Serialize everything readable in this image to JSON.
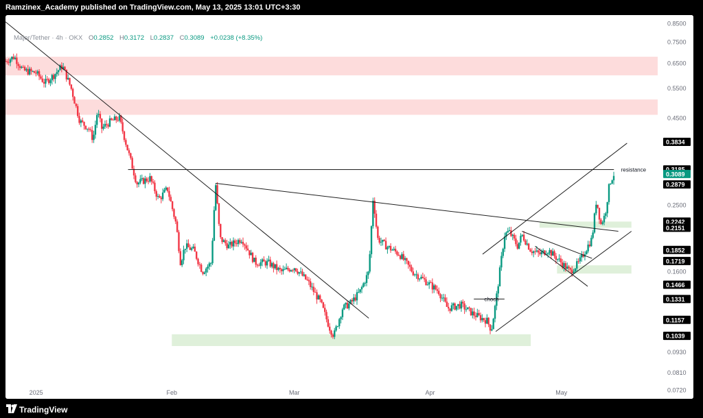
{
  "header": {
    "published_text": "Ramzinex_Academy published on TradingView.com, May 13, 2025 13:01 UTC+3:30"
  },
  "legend": {
    "symbol_text": "Major/Tether · 4h · OKX",
    "o_label": "O",
    "o_value": "0.2852",
    "h_label": "H",
    "h_value": "0.3172",
    "l_label": "L",
    "l_value": "0.2837",
    "c_label": "C",
    "c_value": "0.3089",
    "change": "+0.0238 (+8.35%)"
  },
  "footer": {
    "brand": "TradingView",
    "logo_icon": "tradingview-logo-icon"
  },
  "colors": {
    "up": "#089981",
    "down": "#f23645",
    "line": "#1e1e1e",
    "resistance_zone": "#fddcdc",
    "support_zone": "#dff0da",
    "axis_text": "#6a6d78",
    "last_price_badge": "#089981"
  },
  "chart_data": {
    "type": "candlestick",
    "symbol": "Major/Tether",
    "timeframe": "4h",
    "exchange": "OKX",
    "y_scale": "log",
    "ylim": [
      0.068,
      0.9
    ],
    "grid": false,
    "x_range": [
      "2024-12-25",
      "2025-05-23"
    ],
    "x_tick_labels": [
      {
        "date": "2025-01-01",
        "label": "2025"
      },
      {
        "date": "2025-02-01",
        "label": "Feb"
      },
      {
        "date": "2025-03-01",
        "label": "Mar"
      },
      {
        "date": "2025-04-01",
        "label": "Apr"
      },
      {
        "date": "2025-05-01",
        "label": "May"
      }
    ],
    "y_tick_labels": [
      "0.8500",
      "0.7500",
      "0.6500",
      "0.5500",
      "0.4500",
      "0.2500",
      "0.1600",
      "0.0930",
      "0.0810",
      "0.0720"
    ],
    "price_badges": [
      "0.3834",
      "0.3185",
      "0.3089",
      "0.2879",
      "0.2242",
      "0.2151",
      "0.1852",
      "0.1719",
      "0.1466",
      "0.1331",
      "0.1157",
      "0.1039"
    ],
    "last_price": "0.3089",
    "price_path": [
      [
        "2024-12-25",
        0.66
      ],
      [
        "2024-12-27",
        0.68
      ],
      [
        "2024-12-29",
        0.62
      ],
      [
        "2025-01-01",
        0.61
      ],
      [
        "2025-01-03",
        0.57
      ],
      [
        "2025-01-05",
        0.6
      ],
      [
        "2025-01-07",
        0.64
      ],
      [
        "2025-01-09",
        0.55
      ],
      [
        "2025-01-11",
        0.44
      ],
      [
        "2025-01-13",
        0.42
      ],
      [
        "2025-01-14",
        0.39
      ],
      [
        "2025-01-15",
        0.47
      ],
      [
        "2025-01-16",
        0.42
      ],
      [
        "2025-01-18",
        0.44
      ],
      [
        "2025-01-20",
        0.45
      ],
      [
        "2025-01-22",
        0.36
      ],
      [
        "2025-01-24",
        0.29
      ],
      [
        "2025-01-27",
        0.3
      ],
      [
        "2025-01-29",
        0.26
      ],
      [
        "2025-01-31",
        0.28
      ],
      [
        "2025-02-02",
        0.22
      ],
      [
        "2025-02-03",
        0.17
      ],
      [
        "2025-02-04",
        0.19
      ],
      [
        "2025-02-06",
        0.185
      ],
      [
        "2025-02-08",
        0.16
      ],
      [
        "2025-02-10",
        0.17
      ],
      [
        "2025-02-11",
        0.29
      ],
      [
        "2025-02-12",
        0.2
      ],
      [
        "2025-02-14",
        0.19
      ],
      [
        "2025-02-17",
        0.2
      ],
      [
        "2025-02-20",
        0.17
      ],
      [
        "2025-02-23",
        0.17
      ],
      [
        "2025-02-26",
        0.16
      ],
      [
        "2025-03-01",
        0.165
      ],
      [
        "2025-03-04",
        0.15
      ],
      [
        "2025-03-07",
        0.13
      ],
      [
        "2025-03-09",
        0.11
      ],
      [
        "2025-03-10",
        0.104
      ],
      [
        "2025-03-12",
        0.125
      ],
      [
        "2025-03-14",
        0.13
      ],
      [
        "2025-03-16",
        0.14
      ],
      [
        "2025-03-18",
        0.16
      ],
      [
        "2025-03-19",
        0.265
      ],
      [
        "2025-03-20",
        0.2
      ],
      [
        "2025-03-22",
        0.19
      ],
      [
        "2025-03-25",
        0.18
      ],
      [
        "2025-03-28",
        0.16
      ],
      [
        "2025-03-31",
        0.15
      ],
      [
        "2025-04-03",
        0.14
      ],
      [
        "2025-04-05",
        0.125
      ],
      [
        "2025-04-08",
        0.128
      ],
      [
        "2025-04-11",
        0.12
      ],
      [
        "2025-04-14",
        0.115
      ],
      [
        "2025-04-15",
        0.108
      ],
      [
        "2025-04-16",
        0.13
      ],
      [
        "2025-04-18",
        0.205
      ],
      [
        "2025-04-19",
        0.21
      ],
      [
        "2025-04-21",
        0.19
      ],
      [
        "2025-04-22",
        0.205
      ],
      [
        "2025-04-24",
        0.185
      ],
      [
        "2025-04-26",
        0.18
      ],
      [
        "2025-04-28",
        0.185
      ],
      [
        "2025-04-30",
        0.175
      ],
      [
        "2025-05-02",
        0.165
      ],
      [
        "2025-05-03",
        0.16
      ],
      [
        "2025-05-05",
        0.17
      ],
      [
        "2025-05-07",
        0.19
      ],
      [
        "2025-05-08",
        0.2
      ],
      [
        "2025-05-09",
        0.26
      ],
      [
        "2025-05-10",
        0.22
      ],
      [
        "2025-05-11",
        0.235
      ],
      [
        "2025-05-12",
        0.29
      ],
      [
        "2025-05-13",
        0.3089
      ]
    ],
    "zones": [
      {
        "kind": "resistance",
        "from": "2024-12-25",
        "to": "2025-05-23",
        "low": 0.6,
        "high": 0.68
      },
      {
        "kind": "resistance",
        "from": "2024-12-25",
        "to": "2025-05-23",
        "low": 0.46,
        "high": 0.51
      },
      {
        "kind": "support",
        "from": "2025-04-26",
        "to": "2025-05-17",
        "low": 0.2151,
        "high": 0.2242
      },
      {
        "kind": "support",
        "from": "2025-04-30",
        "to": "2025-05-17",
        "low": 0.158,
        "high": 0.167
      },
      {
        "kind": "support",
        "from": "2025-02-01",
        "to": "2025-04-24",
        "low": 0.097,
        "high": 0.105
      }
    ],
    "lines": [
      {
        "from": [
          "2024-12-25",
          0.86
        ],
        "to": [
          "2025-03-18",
          0.117
        ]
      },
      {
        "from": [
          "2025-01-22",
          0.318
        ],
        "to": [
          "2025-05-13",
          0.318
        ]
      },
      {
        "from": [
          "2025-02-11",
          0.29
        ],
        "to": [
          "2025-05-14",
          0.21
        ]
      },
      {
        "from": [
          "2025-04-13",
          0.18
        ],
        "to": [
          "2025-05-16",
          0.38
        ]
      },
      {
        "from": [
          "2025-04-16",
          0.107
        ],
        "to": [
          "2025-05-17",
          0.21
        ]
      },
      {
        "from": [
          "2025-04-22",
          0.21
        ],
        "to": [
          "2025-05-08",
          0.175
        ]
      },
      {
        "from": [
          "2025-04-25",
          0.19
        ],
        "to": [
          "2025-05-07",
          0.145
        ]
      },
      {
        "from": [
          "2025-04-11",
          0.1331
        ],
        "to": [
          "2025-04-18",
          0.1331
        ]
      }
    ],
    "annotations": [
      {
        "text": "resistance",
        "x": "2025-05-14",
        "y": 0.318
      },
      {
        "text": "choch",
        "x": "2025-04-14",
        "y": 0.1331
      }
    ]
  }
}
